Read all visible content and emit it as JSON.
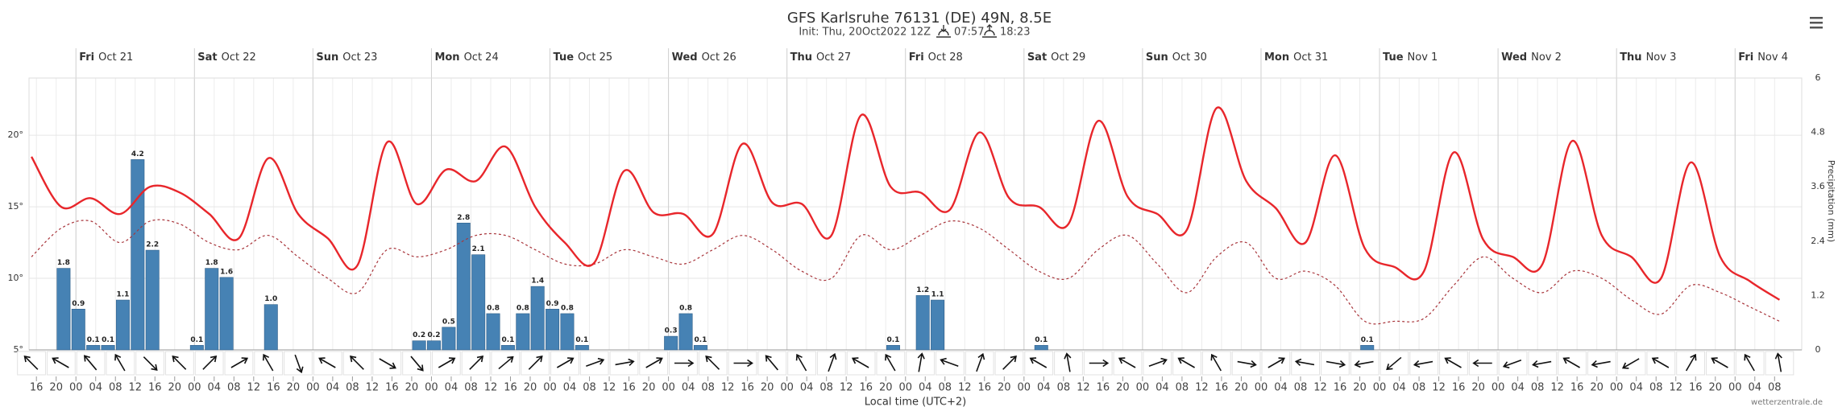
{
  "chart_data": {
    "type": "meteogram",
    "title": "GFS Karlsruhe 76131 (DE) 49N, 8.5E",
    "init": "Init: Thu, 20Oct2022 12Z",
    "sunrise": "07:57",
    "sunset": "18:23",
    "x_label": "Local time (UTC+2)",
    "y2_label": "Precipitation (mm)",
    "credit": "wetterzentrale.de",
    "xlim": [
      14.5,
      373.5
    ],
    "ylim": [
      5,
      24
    ],
    "yticks": [
      {
        "value": 5,
        "label": "5°"
      },
      {
        "value": 10,
        "label": "10°"
      },
      {
        "value": 15,
        "label": "15°"
      },
      {
        "value": 20,
        "label": "20°"
      }
    ],
    "y2lim": [
      0,
      6
    ],
    "y2ticks": [
      0,
      1.2,
      2.4,
      3.6,
      4.8,
      6
    ],
    "grid": true,
    "day_ticks": [
      {
        "value": 24,
        "weekday": "Fri",
        "date": "Oct 21"
      },
      {
        "value": 48,
        "weekday": "Sat",
        "date": "Oct 22"
      },
      {
        "value": 72,
        "weekday": "Sun",
        "date": "Oct 23"
      },
      {
        "value": 96,
        "weekday": "Mon",
        "date": "Oct 24"
      },
      {
        "value": 120,
        "weekday": "Tue",
        "date": "Oct 25"
      },
      {
        "value": 144,
        "weekday": "Wed",
        "date": "Oct 26"
      },
      {
        "value": 168,
        "weekday": "Thu",
        "date": "Oct 27"
      },
      {
        "value": 192,
        "weekday": "Fri",
        "date": "Oct 28"
      },
      {
        "value": 216,
        "weekday": "Sat",
        "date": "Oct 29"
      },
      {
        "value": 240,
        "weekday": "Sun",
        "date": "Oct 30"
      },
      {
        "value": 264,
        "weekday": "Mon",
        "date": "Oct 31"
      },
      {
        "value": 288,
        "weekday": "Tue",
        "date": "Nov 1"
      },
      {
        "value": 312,
        "weekday": "Wed",
        "date": "Nov 2"
      },
      {
        "value": 336,
        "weekday": "Thu",
        "date": "Nov 3"
      },
      {
        "value": 360,
        "weekday": "Fri",
        "date": "Nov 4"
      }
    ],
    "xticks": [
      16,
      20,
      {
        "value": 24,
        "label": "00"
      },
      {
        "value": 28,
        "label": "04"
      },
      {
        "value": 32,
        "label": "08"
      },
      {
        "value": 36,
        "label": "12"
      },
      {
        "value": 40,
        "label": "16"
      },
      {
        "value": 44,
        "label": "20"
      },
      {
        "value": 48,
        "label": "00"
      },
      {
        "value": 52,
        "label": "04"
      },
      {
        "value": 56,
        "label": "08"
      },
      {
        "value": 60,
        "label": "12"
      },
      {
        "value": 64,
        "label": "16"
      },
      {
        "value": 68,
        "label": "20"
      },
      {
        "value": 72,
        "label": "00"
      },
      {
        "value": 76,
        "label": "04"
      },
      {
        "value": 80,
        "label": "08"
      },
      {
        "value": 84,
        "label": "12"
      },
      {
        "value": 88,
        "label": "16"
      },
      {
        "value": 92,
        "label": "20"
      },
      {
        "value": 96,
        "label": "00"
      },
      {
        "value": 100,
        "label": "04"
      },
      {
        "value": 104,
        "label": "08"
      },
      {
        "value": 108,
        "label": "12"
      },
      {
        "value": 112,
        "label": "16"
      },
      {
        "value": 116,
        "label": "20"
      },
      {
        "value": 120,
        "label": "00"
      },
      {
        "value": 124,
        "label": "04"
      },
      {
        "value": 128,
        "label": "08"
      },
      {
        "value": 132,
        "label": "12"
      },
      {
        "value": 136,
        "label": "16"
      },
      {
        "value": 140,
        "label": "20"
      },
      {
        "value": 144,
        "label": "00"
      },
      {
        "value": 148,
        "label": "04"
      },
      {
        "value": 152,
        "label": "08"
      },
      {
        "value": 156,
        "label": "12"
      },
      {
        "value": 160,
        "label": "16"
      },
      {
        "value": 164,
        "label": "20"
      },
      {
        "value": 168,
        "label": "00"
      },
      {
        "value": 172,
        "label": "04"
      },
      {
        "value": 176,
        "label": "08"
      },
      {
        "value": 180,
        "label": "12"
      },
      {
        "value": 184,
        "label": "16"
      },
      {
        "value": 188,
        "label": "20"
      },
      {
        "value": 192,
        "label": "00"
      },
      {
        "value": 196,
        "label": "04"
      },
      {
        "value": 200,
        "label": "08"
      },
      {
        "value": 204,
        "label": "12"
      },
      {
        "value": 208,
        "label": "16"
      },
      {
        "value": 212,
        "label": "20"
      },
      {
        "value": 216,
        "label": "00"
      },
      {
        "value": 220,
        "label": "04"
      },
      {
        "value": 224,
        "label": "08"
      },
      {
        "value": 228,
        "label": "12"
      },
      {
        "value": 232,
        "label": "16"
      },
      {
        "value": 236,
        "label": "20"
      },
      {
        "value": 240,
        "label": "00"
      },
      {
        "value": 244,
        "label": "04"
      },
      {
        "value": 248,
        "label": "08"
      },
      {
        "value": 252,
        "label": "12"
      },
      {
        "value": 256,
        "label": "16"
      },
      {
        "value": 260,
        "label": "20"
      },
      {
        "value": 264,
        "label": "00"
      },
      {
        "value": 268,
        "label": "04"
      },
      {
        "value": 272,
        "label": "08"
      },
      {
        "value": 276,
        "label": "12"
      },
      {
        "value": 280,
        "label": "16"
      },
      {
        "value": 284,
        "label": "20"
      },
      {
        "value": 288,
        "label": "00"
      },
      {
        "value": 292,
        "label": "04"
      },
      {
        "value": 296,
        "label": "08"
      },
      {
        "value": 300,
        "label": "12"
      },
      {
        "value": 304,
        "label": "16"
      },
      {
        "value": 308,
        "label": "20"
      },
      {
        "value": 312,
        "label": "00"
      },
      {
        "value": 316,
        "label": "04"
      },
      {
        "value": 320,
        "label": "08"
      },
      {
        "value": 324,
        "label": "12"
      },
      {
        "value": 328,
        "label": "16"
      },
      {
        "value": 332,
        "label": "20"
      },
      {
        "value": 336,
        "label": "00"
      },
      {
        "value": 340,
        "label": "04"
      },
      {
        "value": 344,
        "label": "08"
      },
      {
        "value": 348,
        "label": "12"
      },
      {
        "value": 352,
        "label": "16"
      },
      {
        "value": 356,
        "label": "20"
      },
      {
        "value": 360,
        "label": "00"
      },
      {
        "value": 364,
        "label": "04"
      },
      {
        "value": 368,
        "label": "08"
      }
    ],
    "x": [
      15,
      21,
      27,
      33,
      39,
      45,
      51,
      57,
      63,
      69,
      75,
      81,
      87,
      93,
      99,
      105,
      111,
      117,
      123,
      129,
      135,
      141,
      147,
      153,
      159,
      165,
      171,
      177,
      183,
      189,
      195,
      201,
      207,
      213,
      219,
      225,
      231,
      237,
      243,
      249,
      255,
      261,
      267,
      273,
      279,
      285,
      291,
      297,
      303,
      309,
      315,
      321,
      327,
      333,
      339,
      345,
      351,
      357,
      363,
      369
    ],
    "temperature": {
      "color": "#e8262b",
      "values": [
        18.5,
        15.0,
        15.6,
        14.5,
        16.4,
        16.0,
        14.5,
        12.8,
        18.4,
        14.5,
        12.8,
        10.9,
        19.5,
        15.2,
        17.6,
        16.8,
        19.2,
        15.0,
        12.5,
        11.1,
        17.5,
        14.6,
        14.5,
        13.1,
        19.4,
        15.3,
        15.2,
        13.0,
        21.4,
        16.4,
        16.0,
        14.8,
        20.2,
        15.6,
        15.0,
        13.8,
        21.0,
        15.7,
        14.5,
        13.4,
        21.9,
        16.8,
        14.9,
        12.5,
        18.6,
        12.1,
        10.8,
        10.5,
        18.8,
        12.7,
        11.5,
        11.0,
        19.6,
        13.0,
        11.5,
        10.0,
        18.1,
        11.5,
        9.8,
        8.5
      ]
    },
    "dewpoint": {
      "color": "#a8343a",
      "values": [
        11.5,
        13.5,
        14.0,
        12.5,
        14.0,
        13.8,
        12.5,
        12.0,
        13.0,
        11.5,
        10.0,
        9.0,
        12.0,
        11.5,
        12.0,
        13.0,
        13.0,
        12.0,
        11.0,
        11.0,
        12.0,
        11.5,
        11.0,
        12.0,
        13.0,
        12.0,
        10.5,
        10.0,
        13.0,
        12.0,
        13.0,
        14.0,
        13.5,
        12.0,
        10.5,
        10.0,
        12.0,
        13.0,
        11.0,
        9.0,
        11.5,
        12.5,
        10.0,
        10.5,
        9.5,
        7.0,
        7.0,
        7.2,
        9.5,
        11.5,
        10.0,
        9.0,
        10.5,
        10.0,
        8.5,
        7.5,
        9.5,
        9.0,
        8.0,
        7.0
      ]
    },
    "wind": {
      "color": "#111",
      "direction": [
        315,
        300,
        320,
        330,
        135,
        315,
        45,
        60,
        330,
        160,
        300,
        315,
        120,
        140,
        60,
        45,
        50,
        45,
        60,
        70,
        80,
        60,
        90,
        315,
        90,
        320,
        330,
        20,
        300,
        330,
        10,
        290,
        20,
        45,
        300,
        350,
        90,
        300,
        70,
        300,
        330,
        100,
        60,
        280,
        100,
        260,
        230,
        260,
        300,
        270,
        250,
        260,
        300,
        260,
        240,
        300,
        30,
        300,
        330,
        350
      ]
    },
    "precipitation": {
      "color": "#4682b4",
      "axis": "y2",
      "x": [
        20,
        23,
        26,
        29,
        32,
        35,
        38,
        47,
        50,
        53,
        62,
        92,
        95,
        98,
        101,
        104,
        107,
        110,
        113,
        116,
        119,
        122,
        125,
        143,
        146,
        149,
        188,
        194,
        197,
        218,
        284
      ],
      "x_end": [
        23,
        26,
        29,
        32,
        35,
        38,
        41,
        50,
        53,
        56,
        65,
        95,
        98,
        101,
        104,
        107,
        110,
        113,
        116,
        119,
        122,
        125,
        128,
        146,
        149,
        152,
        191,
        197,
        200,
        221,
        287
      ],
      "values": [
        1.8,
        0.9,
        0.1,
        0.1,
        1.1,
        4.2,
        2.2,
        0.1,
        1.8,
        1.6,
        1.0,
        0.2,
        0.2,
        0.5,
        2.8,
        2.1,
        0.8,
        0.1,
        0.8,
        1.4,
        0.9,
        0.8,
        0.1,
        0.3,
        0.8,
        0.1,
        0.1,
        1.2,
        1.1,
        0.1,
        0.1
      ],
      "value_labels": [
        "1.8",
        "0.9",
        "0.1",
        "0.1",
        "1.1",
        "4.2",
        "2.2",
        "0.1",
        "1.8",
        "1.6",
        "1.0",
        "0.2",
        "0.2",
        "0.5",
        "2.8",
        "2.1",
        "0.8",
        "0.1",
        "0.8",
        "1.4",
        "0.9",
        "0.8",
        "0.1",
        "0.3",
        "0.8",
        "0.1",
        "0.1",
        "1.2",
        "1.1",
        "0.1",
        "0.1"
      ]
    }
  }
}
